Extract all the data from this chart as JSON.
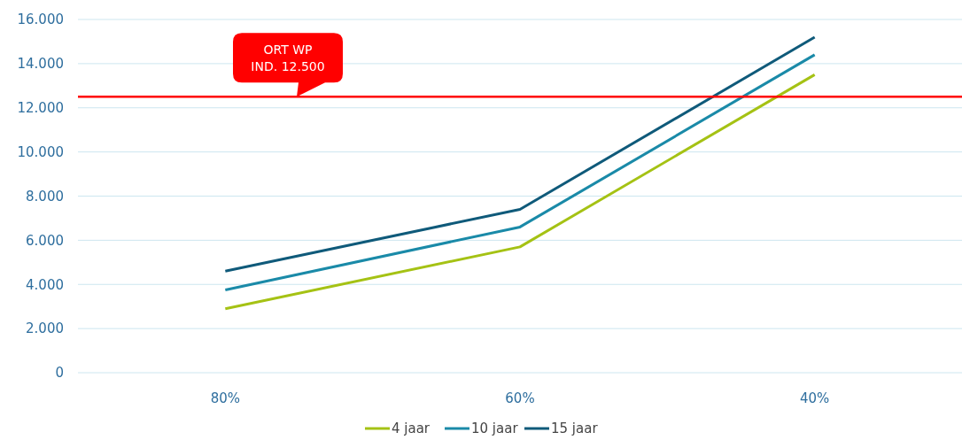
{
  "chart_data": {
    "type": "line",
    "categories": [
      "80%",
      "60%",
      "40%"
    ],
    "series": [
      {
        "name": "4 jaar",
        "color": "#a5c214",
        "values": [
          2900,
          5700,
          13500
        ]
      },
      {
        "name": "10 jaar",
        "color": "#1a8aa8",
        "values": [
          3750,
          6600,
          14400
        ]
      },
      {
        "name": "15 jaar",
        "color": "#0f5a7a",
        "values": [
          4600,
          7400,
          15200
        ]
      }
    ],
    "ylim": [
      0,
      16000
    ],
    "yticks": [
      0,
      {
        "value": 2000,
        "label": "2.000"
      },
      {
        "value": 4000,
        "label": "4.000"
      },
      {
        "value": 6000,
        "label": "6.000"
      },
      {
        "value": 8000,
        "label": "8.000"
      },
      {
        "value": 10000,
        "label": "10.000"
      },
      {
        "value": 12000,
        "label": "12.000"
      },
      {
        "value": 14000,
        "label": "14.000"
      },
      {
        "value": 16000,
        "label": "16.000"
      }
    ],
    "ref_lines": [
      {
        "axis": "y",
        "value": 12500,
        "label": "ORT WP\nIND. 12.500",
        "color": "#ff0000"
      }
    ],
    "grid": "y",
    "legend": "bottom",
    "marker": "none",
    "line_style": "solid"
  }
}
